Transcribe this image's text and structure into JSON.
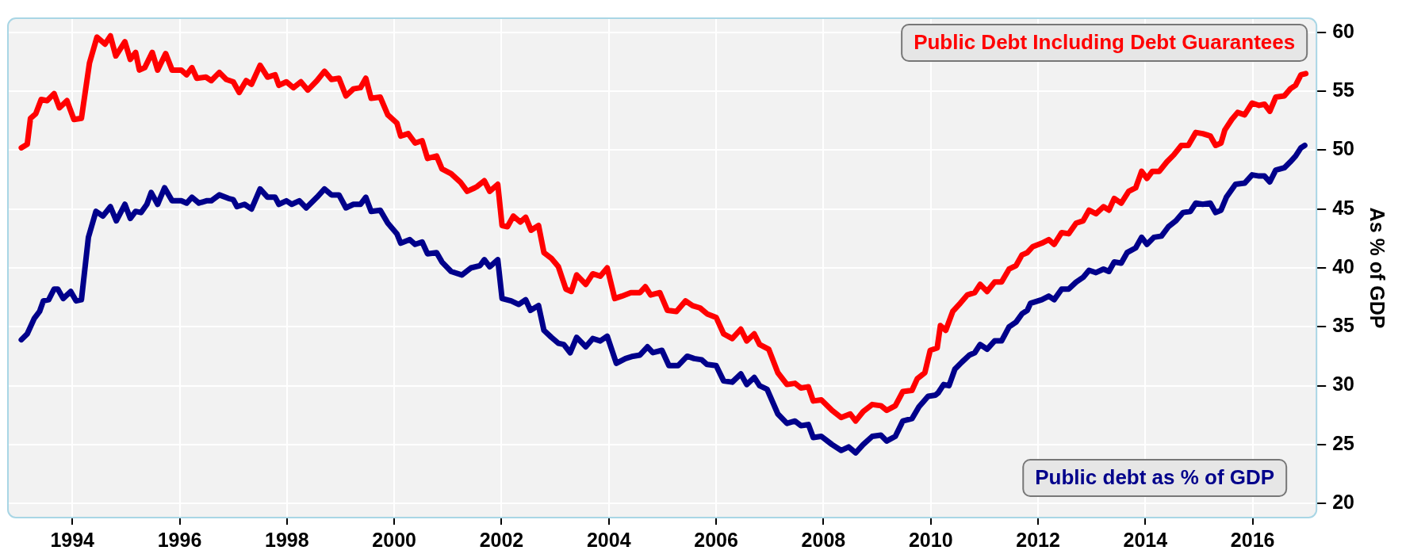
{
  "chart_data": {
    "type": "line",
    "ylabel": "As % of GDP",
    "xlim": [
      1992.8,
      2017.19
    ],
    "xticks": [
      1994,
      1996,
      1998,
      2000,
      2002,
      2004,
      2006,
      2008,
      2010,
      2012,
      2014,
      2016
    ],
    "ylim": [
      18.8,
      61.2
    ],
    "yticks": [
      20,
      25,
      30,
      35,
      40,
      45,
      50,
      55,
      60
    ],
    "grid": true,
    "marker": "none",
    "line_style": "solid",
    "series": [
      {
        "name": "Public Debt Including Debt Guarantees",
        "color": "#ff0000",
        "x": [
          1993.05,
          1993.16,
          1993.22,
          1993.32,
          1993.42,
          1993.53,
          1993.66,
          1993.76,
          1993.9,
          1994.03,
          1994.17,
          1994.32,
          1994.46,
          1994.61,
          1994.71,
          1994.81,
          1994.98,
          1995.08,
          1995.18,
          1995.25,
          1995.35,
          1995.49,
          1995.59,
          1995.74,
          1995.86,
          1996.03,
          1996.13,
          1996.23,
          1996.32,
          1996.49,
          1996.59,
          1996.74,
          1996.87,
          1997.0,
          1997.11,
          1997.24,
          1997.34,
          1997.5,
          1997.64,
          1997.78,
          1997.85,
          1997.99,
          1998.12,
          1998.26,
          1998.39,
          1998.56,
          1998.7,
          1998.83,
          1998.97,
          1999.1,
          1999.24,
          1999.37,
          1999.47,
          1999.57,
          1999.74,
          1999.88,
          2000.05,
          2000.12,
          2000.26,
          2000.39,
          2000.52,
          2000.62,
          2000.79,
          2000.89,
          2001.06,
          2001.23,
          2001.36,
          2001.5,
          2001.54,
          2001.68,
          2001.78,
          2001.93,
          2002.01,
          2002.11,
          2002.22,
          2002.35,
          2002.45,
          2002.55,
          2002.69,
          2002.79,
          2002.93,
          2003.06,
          2003.2,
          2003.3,
          2003.4,
          2003.57,
          2003.7,
          2003.84,
          2003.97,
          2004.11,
          2004.24,
          2004.41,
          2004.58,
          2004.68,
          2004.78,
          2004.95,
          2005.09,
          2005.26,
          2005.43,
          2005.56,
          2005.7,
          2005.83,
          2006.0,
          2006.14,
          2006.3,
          2006.46,
          2006.57,
          2006.71,
          2006.81,
          2006.98,
          2007.15,
          2007.32,
          2007.47,
          2007.58,
          2007.72,
          2007.81,
          2007.96,
          2008.16,
          2008.33,
          2008.5,
          2008.6,
          2008.74,
          2008.91,
          2009.07,
          2009.18,
          2009.34,
          2009.48,
          2009.65,
          2009.75,
          2009.89,
          2009.99,
          2010.12,
          2010.18,
          2010.28,
          2010.41,
          2010.55,
          2010.68,
          2010.82,
          2010.92,
          2011.05,
          2011.19,
          2011.32,
          2011.46,
          2011.59,
          2011.7,
          2011.8,
          2011.9,
          2012.07,
          2012.2,
          2012.3,
          2012.44,
          2012.57,
          2012.71,
          2012.84,
          2012.95,
          2013.08,
          2013.22,
          2013.32,
          2013.42,
          2013.55,
          2013.69,
          2013.82,
          2013.93,
          2014.03,
          2014.13,
          2014.26,
          2014.4,
          2014.53,
          2014.67,
          2014.8,
          2014.94,
          2015.07,
          2015.21,
          2015.31,
          2015.41,
          2015.48,
          2015.61,
          2015.72,
          2015.85,
          2015.99,
          2016.12,
          2016.22,
          2016.32,
          2016.43,
          2016.59,
          2016.7,
          2016.8,
          2016.9,
          2016.99
        ],
        "values": [
          50.2,
          50.5,
          52.7,
          53.1,
          54.3,
          54.2,
          54.8,
          53.6,
          54.2,
          52.6,
          52.7,
          57.4,
          59.6,
          59.0,
          59.7,
          58.0,
          59.2,
          57.7,
          58.3,
          56.8,
          57.0,
          58.3,
          56.8,
          58.2,
          56.8,
          56.8,
          56.4,
          57.0,
          56.1,
          56.2,
          55.9,
          56.6,
          56.0,
          55.8,
          54.9,
          55.9,
          55.6,
          57.2,
          56.2,
          56.4,
          55.5,
          55.8,
          55.3,
          55.8,
          55.1,
          55.9,
          56.7,
          56.0,
          56.1,
          54.6,
          55.2,
          55.3,
          56.1,
          54.4,
          54.5,
          53.0,
          52.3,
          51.2,
          51.4,
          50.6,
          50.8,
          49.3,
          49.5,
          48.4,
          48.0,
          47.3,
          46.5,
          46.8,
          46.9,
          47.4,
          46.5,
          47.1,
          43.6,
          43.5,
          44.4,
          43.9,
          44.3,
          43.2,
          43.6,
          41.3,
          40.8,
          40.1,
          38.2,
          38.0,
          39.4,
          38.6,
          39.5,
          39.3,
          40.0,
          37.4,
          37.6,
          37.9,
          37.9,
          38.4,
          37.7,
          37.9,
          36.4,
          36.3,
          37.2,
          36.8,
          36.6,
          36.1,
          35.8,
          34.4,
          34.0,
          34.8,
          33.8,
          34.4,
          33.5,
          33.1,
          31.1,
          30.1,
          30.2,
          29.8,
          29.9,
          28.7,
          28.8,
          27.9,
          27.3,
          27.6,
          27.0,
          27.8,
          28.4,
          28.3,
          27.9,
          28.3,
          29.5,
          29.6,
          30.6,
          31.1,
          33.0,
          33.2,
          35.1,
          34.7,
          36.3,
          37.0,
          37.7,
          37.9,
          38.6,
          38.0,
          38.8,
          38.8,
          39.9,
          40.2,
          41.1,
          41.3,
          41.8,
          42.1,
          42.4,
          42.0,
          43.0,
          42.9,
          43.8,
          44.0,
          44.9,
          44.6,
          45.2,
          44.9,
          45.9,
          45.5,
          46.5,
          46.8,
          48.2,
          47.6,
          48.2,
          48.2,
          49.0,
          49.6,
          50.4,
          50.4,
          51.5,
          51.4,
          51.2,
          50.4,
          50.6,
          51.7,
          52.6,
          53.2,
          53.0,
          54.0,
          53.8,
          53.9,
          53.3,
          54.5,
          54.6,
          55.2,
          55.5,
          56.4,
          56.5
        ]
      },
      {
        "name": "Public debt as % of GDP",
        "color": "#00008b",
        "x": [
          1993.05,
          1993.16,
          1993.29,
          1993.39,
          1993.46,
          1993.56,
          1993.66,
          1993.73,
          1993.83,
          1993.97,
          1994.07,
          1994.17,
          1994.3,
          1994.44,
          1994.57,
          1994.71,
          1994.82,
          1994.98,
          1995.08,
          1995.18,
          1995.28,
          1995.39,
          1995.47,
          1995.59,
          1995.72,
          1995.86,
          1996.03,
          1996.13,
          1996.23,
          1996.36,
          1996.5,
          1996.59,
          1996.74,
          1996.91,
          1997.0,
          1997.07,
          1997.21,
          1997.34,
          1997.5,
          1997.64,
          1997.78,
          1997.85,
          1997.99,
          1998.09,
          1998.23,
          1998.36,
          1998.56,
          1998.7,
          1998.83,
          1998.97,
          1999.1,
          1999.24,
          1999.37,
          1999.47,
          1999.57,
          1999.74,
          1999.88,
          2000.05,
          2000.12,
          2000.29,
          2000.39,
          2000.52,
          2000.62,
          2000.79,
          2000.89,
          2001.06,
          2001.26,
          2001.43,
          2001.6,
          2001.68,
          2001.78,
          2001.93,
          2002.01,
          2002.18,
          2002.32,
          2002.45,
          2002.54,
          2002.69,
          2002.79,
          2002.93,
          2003.06,
          2003.16,
          2003.28,
          2003.4,
          2003.57,
          2003.7,
          2003.84,
          2003.97,
          2004.14,
          2004.31,
          2004.45,
          2004.58,
          2004.72,
          2004.82,
          2004.99,
          2005.12,
          2005.29,
          2005.46,
          2005.59,
          2005.73,
          2005.83,
          2006.0,
          2006.14,
          2006.3,
          2006.46,
          2006.57,
          2006.71,
          2006.81,
          2006.95,
          2007.15,
          2007.32,
          2007.47,
          2007.58,
          2007.72,
          2007.81,
          2007.96,
          2008.16,
          2008.33,
          2008.47,
          2008.6,
          2008.74,
          2008.91,
          2009.07,
          2009.18,
          2009.34,
          2009.48,
          2009.65,
          2009.78,
          2009.95,
          2010.09,
          2010.14,
          2010.24,
          2010.34,
          2010.45,
          2010.58,
          2010.72,
          2010.82,
          2010.92,
          2011.05,
          2011.19,
          2011.32,
          2011.46,
          2011.59,
          2011.7,
          2011.8,
          2011.86,
          2012.07,
          2012.2,
          2012.3,
          2012.44,
          2012.57,
          2012.71,
          2012.84,
          2012.95,
          2013.08,
          2013.22,
          2013.32,
          2013.42,
          2013.55,
          2013.66,
          2013.82,
          2013.93,
          2014.03,
          2014.16,
          2014.3,
          2014.43,
          2014.57,
          2014.7,
          2014.84,
          2014.94,
          2015.07,
          2015.21,
          2015.31,
          2015.41,
          2015.51,
          2015.68,
          2015.85,
          2015.99,
          2016.12,
          2016.22,
          2016.32,
          2016.43,
          2016.59,
          2016.7,
          2016.8,
          2016.9,
          2016.97
        ],
        "values": [
          33.9,
          34.4,
          35.7,
          36.3,
          37.2,
          37.3,
          38.2,
          38.2,
          37.4,
          38.0,
          37.2,
          37.3,
          42.6,
          44.8,
          44.4,
          45.2,
          44.0,
          45.4,
          44.2,
          44.8,
          44.7,
          45.4,
          46.4,
          45.4,
          46.8,
          45.7,
          45.7,
          45.5,
          46.0,
          45.5,
          45.7,
          45.7,
          46.2,
          45.9,
          45.8,
          45.2,
          45.4,
          45.0,
          46.7,
          46.0,
          46.0,
          45.4,
          45.7,
          45.4,
          45.7,
          45.1,
          46.0,
          46.7,
          46.2,
          46.2,
          45.1,
          45.4,
          45.4,
          46.0,
          44.8,
          44.9,
          43.8,
          42.9,
          42.1,
          42.4,
          42.0,
          42.2,
          41.2,
          41.3,
          40.5,
          39.7,
          39.4,
          40.0,
          40.2,
          40.7,
          40.1,
          40.7,
          37.4,
          37.2,
          36.9,
          37.3,
          36.4,
          36.8,
          34.7,
          34.1,
          33.6,
          33.5,
          32.8,
          34.1,
          33.3,
          34.0,
          33.8,
          34.2,
          31.9,
          32.3,
          32.5,
          32.6,
          33.3,
          32.8,
          33.0,
          31.7,
          31.7,
          32.5,
          32.3,
          32.2,
          31.8,
          31.7,
          30.4,
          30.3,
          31.0,
          30.1,
          30.7,
          30.0,
          29.7,
          27.6,
          26.8,
          27.0,
          26.6,
          26.7,
          25.6,
          25.7,
          25.0,
          24.5,
          24.8,
          24.3,
          25.0,
          25.7,
          25.8,
          25.3,
          25.7,
          27.0,
          27.2,
          28.2,
          29.1,
          29.2,
          29.4,
          30.1,
          30.0,
          31.4,
          32.0,
          32.6,
          32.8,
          33.5,
          33.1,
          33.8,
          33.8,
          35.0,
          35.4,
          36.1,
          36.4,
          37.0,
          37.3,
          37.6,
          37.3,
          38.2,
          38.2,
          38.8,
          39.2,
          39.8,
          39.6,
          39.9,
          39.7,
          40.5,
          40.4,
          41.3,
          41.7,
          42.6,
          42.0,
          42.6,
          42.7,
          43.5,
          44.0,
          44.7,
          44.8,
          45.5,
          45.4,
          45.5,
          44.7,
          44.9,
          46.0,
          47.1,
          47.2,
          47.9,
          47.8,
          47.8,
          47.3,
          48.3,
          48.5,
          49.0,
          49.5,
          50.2,
          50.4
        ]
      }
    ]
  }
}
